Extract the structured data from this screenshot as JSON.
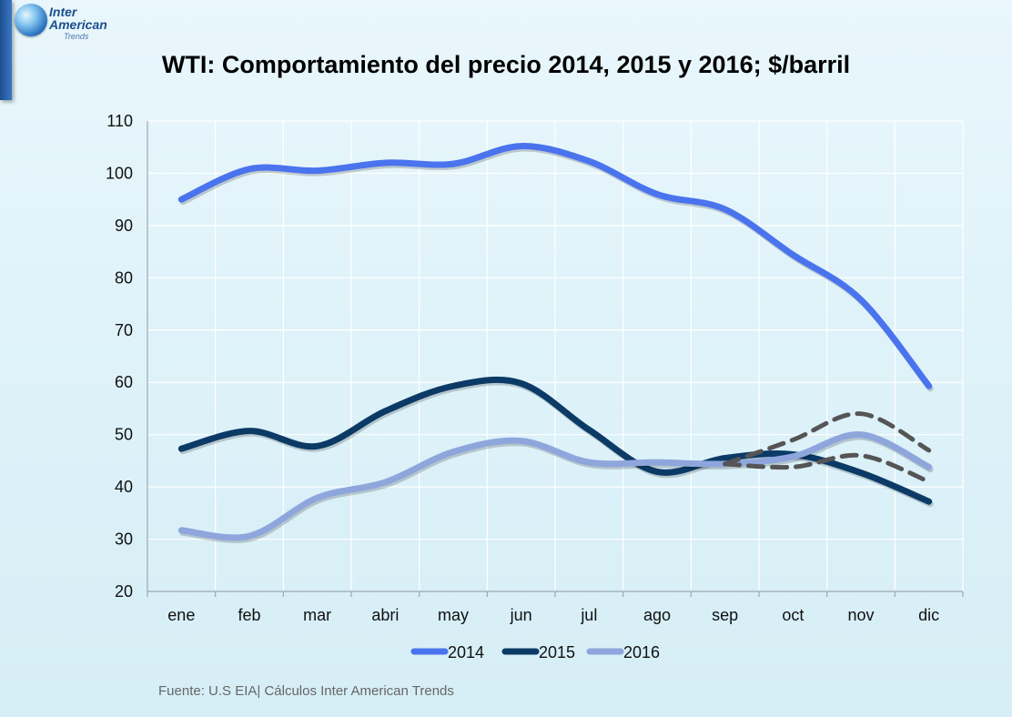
{
  "logo": {
    "line1": "Inter",
    "line2": "American",
    "line3": "Trends"
  },
  "source": "Fuente: U.S EIA| Cálculos Inter American Trends",
  "chart_data": {
    "type": "line",
    "title": "WTI: Comportamiento del precio 2014, 2015 y 2016; $/barril",
    "xlabel": "",
    "ylabel": "",
    "categories": [
      "ene",
      "feb",
      "mar",
      "abri",
      "may",
      "jun",
      "jul",
      "ago",
      "sep",
      "oct",
      "nov",
      "dic"
    ],
    "ylim": [
      20,
      110
    ],
    "yticks": [
      20,
      30,
      40,
      50,
      60,
      70,
      80,
      90,
      100,
      110
    ],
    "grid": true,
    "legend_position": "bottom",
    "series": [
      {
        "name": "2014",
        "color": "#4a73ee",
        "values": [
          95,
          100.8,
          100.5,
          102,
          101.8,
          105.2,
          102.3,
          96,
          93.1,
          84.4,
          75.8,
          59.3
        ]
      },
      {
        "name": "2015",
        "color": "#0b3a66",
        "values": [
          47.3,
          50.7,
          47.8,
          54.5,
          59.3,
          59.8,
          50.9,
          42.9,
          45.5,
          46.2,
          42.7,
          37.2
        ]
      },
      {
        "name": "2016",
        "color": "#8ea6dc",
        "values": [
          31.7,
          30.6,
          37.9,
          40.9,
          46.7,
          48.8,
          44.7,
          44.7,
          44.4,
          45.8,
          50,
          43.8
        ]
      }
    ],
    "projections": [
      {
        "color": "#555555",
        "style": "dashed",
        "start": "sep",
        "values": [
          44.4,
          49,
          54,
          47
        ]
      },
      {
        "color": "#555555",
        "style": "dashed",
        "start": "sep",
        "values": [
          44.4,
          43.8,
          46,
          41
        ]
      }
    ]
  }
}
